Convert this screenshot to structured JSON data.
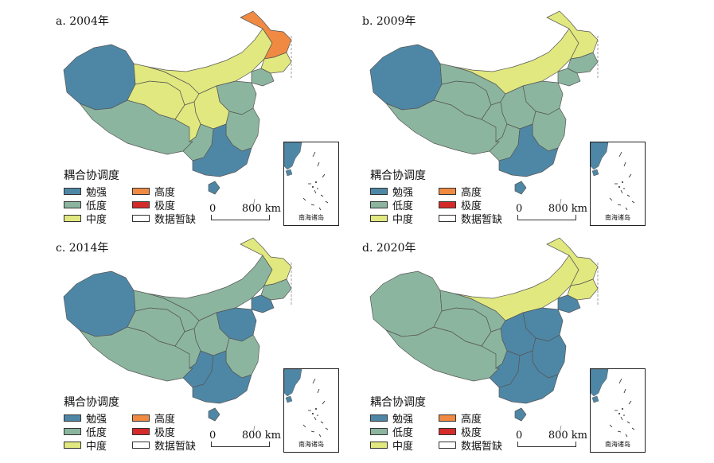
{
  "colors": {
    "mianqiang": "#4e87a6",
    "didu": "#8cb59f",
    "zhongdu": "#e1e87f",
    "gaodu": "#f08a42",
    "jidu": "#d52a2a",
    "no_data": "#ffffff",
    "border": "#555555",
    "sea": "#4e87a6"
  },
  "legend": {
    "title": "耦合协调度",
    "items": [
      {
        "label": "勉强",
        "color": "#4e87a6"
      },
      {
        "label": "高度",
        "color": "#f08a42"
      },
      {
        "label": "低度",
        "color": "#8cb59f"
      },
      {
        "label": "极度",
        "color": "#d52a2a"
      },
      {
        "label": "中度",
        "color": "#e1e87f"
      },
      {
        "label": "数据暂缺",
        "color": "#ffffff"
      }
    ]
  },
  "scale": {
    "zero": "0",
    "distance": "800 km"
  },
  "inset_label": "南海诸岛",
  "panels": [
    {
      "title": "a. 2004年",
      "regions": {
        "xinjiang": "mianqiang",
        "tibet": "didu",
        "qinghai": "zhongdu",
        "gansu": "zhongdu",
        "inner_mongolia": "zhongdu",
        "heilongjiang": "gaodu",
        "jilin": "zhongdu",
        "liaoning": "didu",
        "north_china": "didu",
        "central_north": "zhongdu",
        "sichuan": "zhongdu",
        "east": "didu",
        "southwest": "didu",
        "south": "mianqiang",
        "hainan": "mianqiang"
      }
    },
    {
      "title": "b. 2009年",
      "regions": {
        "xinjiang": "mianqiang",
        "tibet": "didu",
        "qinghai": "didu",
        "gansu": "didu",
        "inner_mongolia": "zhongdu",
        "heilongjiang": "zhongdu",
        "jilin": "didu",
        "liaoning": "didu",
        "north_china": "didu",
        "central_north": "didu",
        "sichuan": "didu",
        "east": "didu",
        "southwest": "didu",
        "south": "mianqiang",
        "hainan": "mianqiang"
      }
    },
    {
      "title": "c. 2014年",
      "regions": {
        "xinjiang": "mianqiang",
        "tibet": "didu",
        "qinghai": "didu",
        "gansu": "didu",
        "inner_mongolia": "didu",
        "heilongjiang": "zhongdu",
        "jilin": "didu",
        "liaoning": "mianqiang",
        "north_china": "mianqiang",
        "central_north": "didu",
        "sichuan": "didu",
        "east": "didu",
        "southwest": "mianqiang",
        "south": "mianqiang",
        "hainan": "mianqiang"
      }
    },
    {
      "title": "d. 2020年",
      "regions": {
        "xinjiang": "didu",
        "tibet": "didu",
        "qinghai": "didu",
        "gansu": "didu",
        "inner_mongolia": "zhongdu",
        "heilongjiang": "zhongdu",
        "jilin": "zhongdu",
        "liaoning": "mianqiang",
        "north_china": "mianqiang",
        "central_north": "mianqiang",
        "sichuan": "didu",
        "east": "mianqiang",
        "southwest": "mianqiang",
        "south": "mianqiang",
        "hainan": "mianqiang"
      }
    }
  ]
}
